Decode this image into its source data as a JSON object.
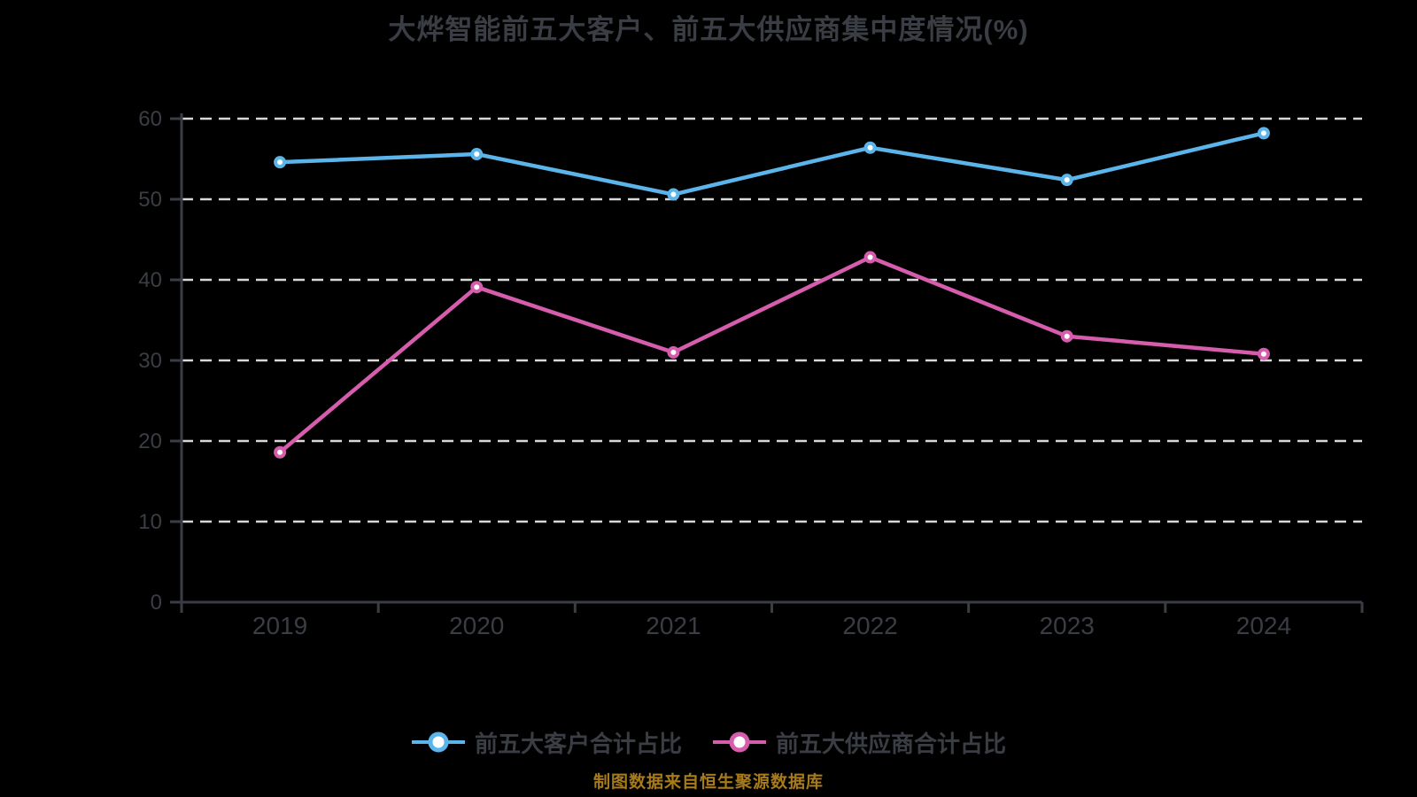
{
  "title": "大烨智能前五大客户、前五大供应商集中度情况(%)",
  "footer_note": "制图数据来自恒生聚源数据库",
  "colors": {
    "background": "#000000",
    "text": "#3A3E44",
    "grid": "#D8D8D8",
    "customer_series": "#5BB5EA",
    "supplier_series": "#D65CAD",
    "marker_fill": "#FFFFFF",
    "footer_text": "#A87B1A"
  },
  "chart_data": {
    "type": "line",
    "title": "大烨智能前五大客户、前五大供应商集中度情况(%)",
    "categories": [
      "2019",
      "2020",
      "2021",
      "2022",
      "2023",
      "2024"
    ],
    "series": [
      {
        "name": "前五大客户合计占比",
        "color": "#5BB5EA",
        "values": [
          54.6,
          55.6,
          50.6,
          56.4,
          52.4,
          58.2
        ]
      },
      {
        "name": "前五大供应商合计占比",
        "color": "#D65CAD",
        "values": [
          18.6,
          39.1,
          31.0,
          42.8,
          33.0,
          30.8
        ]
      }
    ],
    "ylim": [
      0,
      60
    ],
    "yticks": [
      0,
      10,
      20,
      30,
      40,
      50,
      60
    ],
    "xlabel": "",
    "ylabel": "",
    "grid": "horizontal-dashed",
    "legend_position": "bottom"
  }
}
